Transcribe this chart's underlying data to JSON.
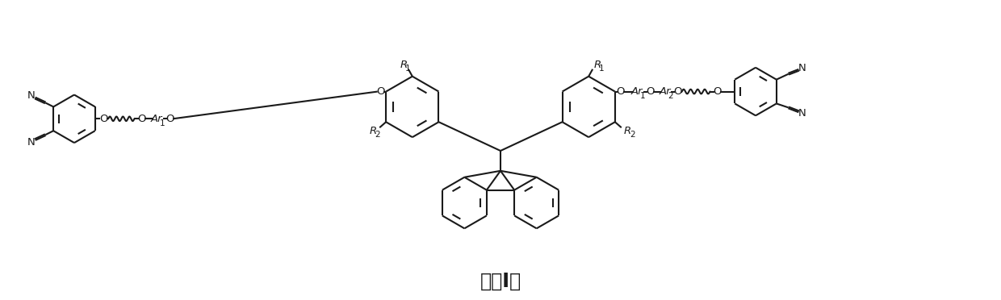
{
  "title": "式（Ⅰ）",
  "title_fontsize": 17,
  "bg_color": "#ffffff",
  "line_color": "#1a1a1a",
  "lw": 1.5,
  "lw_thin": 1.0,
  "fs": 9.5,
  "fs_sub": 7.5,
  "fig_width": 12.4,
  "fig_height": 3.72,
  "xlim": [
    0,
    124
  ],
  "ylim": [
    0,
    37.2
  ]
}
